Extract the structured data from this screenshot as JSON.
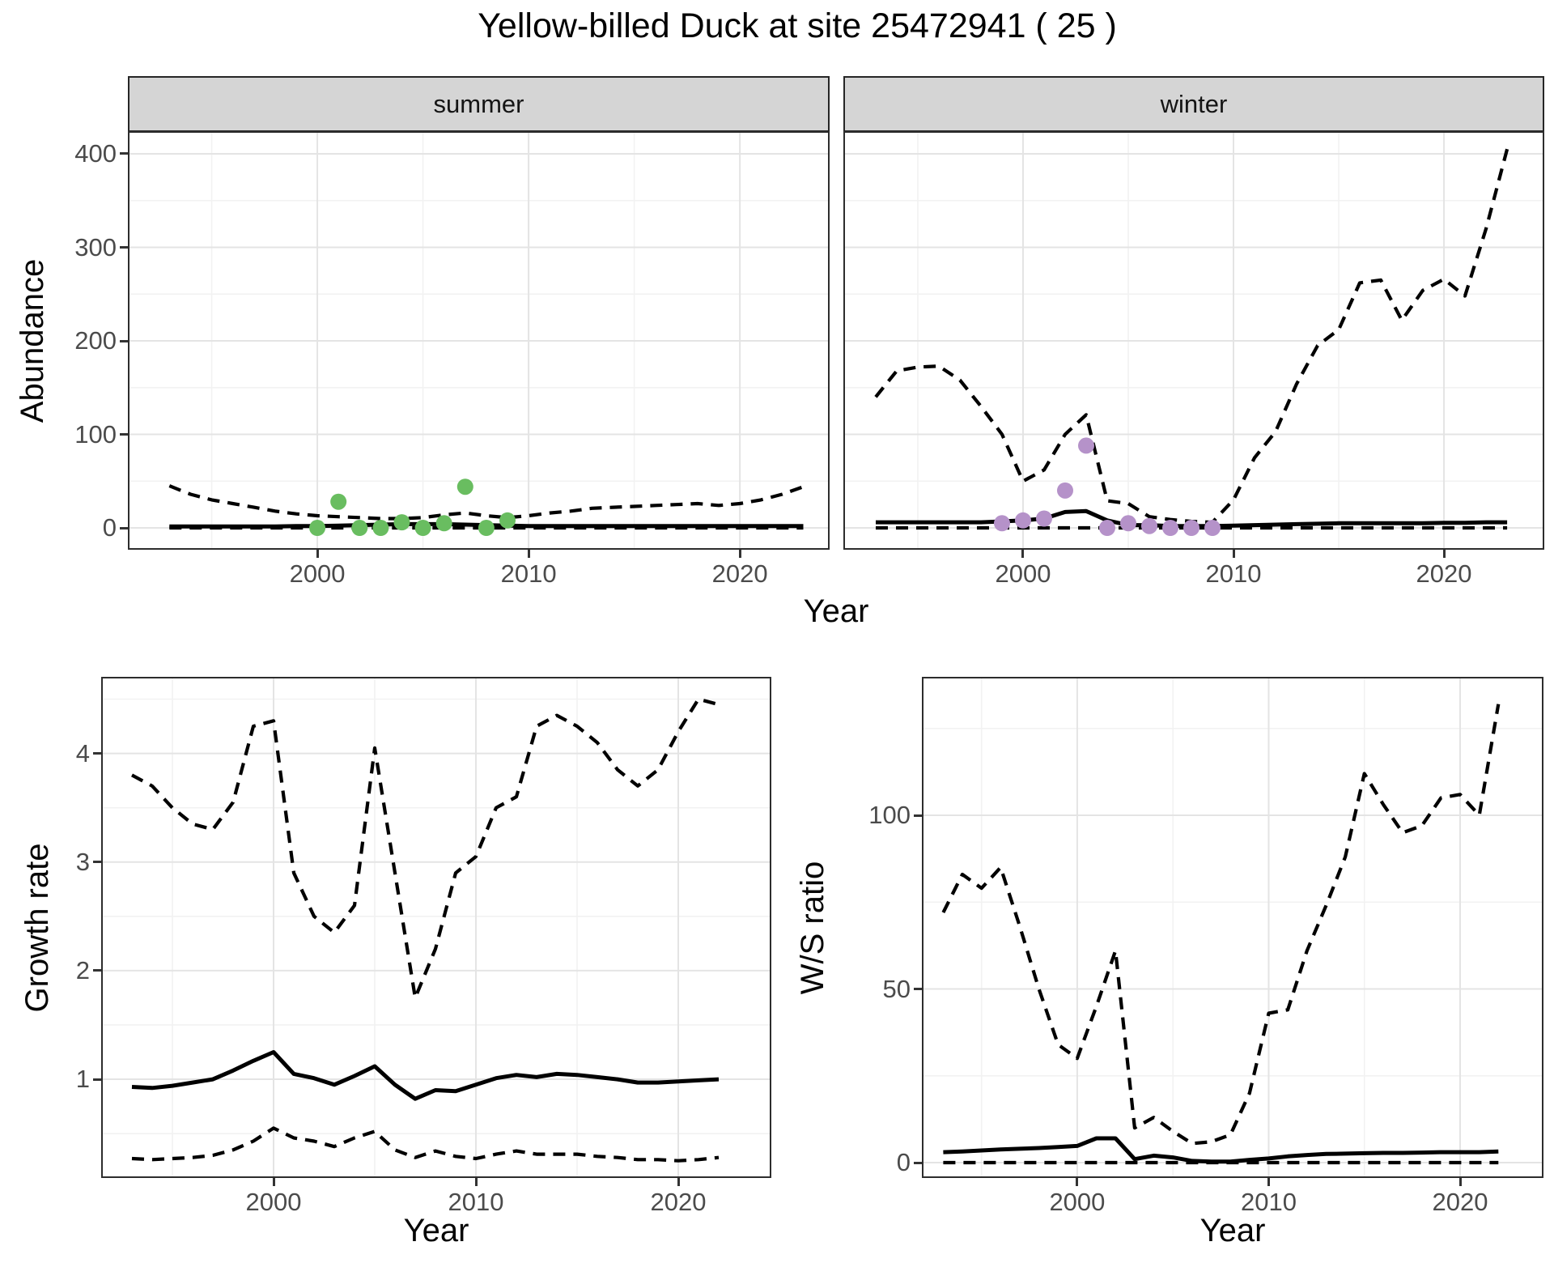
{
  "title": "Yellow-billed Duck at site 25472941 ( 25 )",
  "facets": {
    "summer": "summer",
    "winter": "winter"
  },
  "axes": {
    "abundance_y": "Abundance",
    "growth_y": "Growth rate",
    "ws_y": "W/S ratio",
    "top_x": "Year",
    "growth_x": "Year",
    "ws_x": "Year"
  },
  "colors": {
    "summer_points": "#69bd60",
    "winter_points": "#b592c9",
    "line": "#000000",
    "strip_bg": "#d5d5d5",
    "grid_major": "#e4e4e4",
    "grid_minor": "#f2f2f2",
    "tick_text": "#4b4b4b"
  },
  "chart_data": [
    {
      "id": "summer",
      "type": "line",
      "facet_label": "summer",
      "xlabel": "Year",
      "ylabel": "Abundance",
      "xlim": [
        1991.11,
        2024.17
      ],
      "ylim": [
        -21.6,
        422.5
      ],
      "xticks": [
        2000,
        2010,
        2020
      ],
      "xminor": [
        1995,
        2005,
        2015
      ],
      "yticks": [
        0,
        100,
        200,
        300,
        400
      ],
      "yminor": [
        50,
        150,
        250,
        350
      ],
      "show_y_labels": true,
      "series": [
        {
          "name": "upper_ci",
          "style": "dashed",
          "years": [
            1993,
            1994,
            1995,
            1996,
            1997,
            1998,
            1999,
            2000,
            2001,
            2002,
            2003,
            2004,
            2005,
            2006,
            2007,
            2008,
            2009,
            2010,
            2011,
            2012,
            2013,
            2014,
            2015,
            2016,
            2017,
            2018,
            2019,
            2020,
            2021,
            2022,
            2023
          ],
          "values": [
            45,
            36,
            30,
            26,
            22,
            18,
            15,
            13,
            12,
            11,
            10,
            10,
            11,
            14,
            16,
            13,
            11,
            13,
            16,
            18,
            21,
            22,
            23,
            24,
            25,
            26,
            24,
            26,
            30,
            36,
            44
          ]
        },
        {
          "name": "median",
          "style": "solid",
          "years": [
            1993,
            1994,
            1995,
            1996,
            1997,
            1998,
            1999,
            2000,
            2001,
            2002,
            2003,
            2004,
            2005,
            2006,
            2007,
            2008,
            2009,
            2010,
            2011,
            2012,
            2013,
            2014,
            2015,
            2016,
            2017,
            2018,
            2019,
            2020,
            2021,
            2022,
            2023
          ],
          "values": [
            1.5,
            1.5,
            1.5,
            1.5,
            1.5,
            1.5,
            2,
            2,
            2.5,
            3,
            3.5,
            4,
            4,
            4,
            3.5,
            3,
            2.5,
            2,
            2,
            2,
            2,
            2,
            2,
            2,
            2,
            2,
            2,
            2,
            2,
            2,
            2
          ]
        },
        {
          "name": "lower_ci",
          "style": "dashed",
          "years": [
            1993,
            1994,
            1995,
            1996,
            1997,
            1998,
            1999,
            2000,
            2001,
            2002,
            2003,
            2004,
            2005,
            2006,
            2007,
            2008,
            2009,
            2010,
            2011,
            2012,
            2013,
            2014,
            2015,
            2016,
            2017,
            2018,
            2019,
            2020,
            2021,
            2022,
            2023
          ],
          "values": [
            0,
            0,
            0,
            0,
            0,
            0,
            0,
            0,
            0,
            0,
            0,
            0,
            0,
            0,
            0,
            0,
            0,
            0,
            0,
            0,
            0,
            0,
            0,
            0,
            0,
            0,
            0,
            0,
            0,
            0,
            0
          ]
        }
      ],
      "points": {
        "name": "summer_observations",
        "color_key": "summer_points",
        "years": [
          2000,
          2001,
          2002,
          2003,
          2004,
          2005,
          2006,
          2007,
          2008,
          2009
        ],
        "values": [
          0,
          28,
          0,
          0,
          6,
          0,
          5,
          44,
          0,
          8
        ]
      }
    },
    {
      "id": "winter",
      "type": "line",
      "facet_label": "winter",
      "xlabel": "Year",
      "ylabel": "Abundance",
      "xlim": [
        1991.54,
        2024.69
      ],
      "ylim": [
        -21.6,
        422.5
      ],
      "xticks": [
        2000,
        2010,
        2020
      ],
      "xminor": [
        1995,
        2005,
        2015
      ],
      "yticks": [
        0,
        100,
        200,
        300,
        400
      ],
      "yminor": [
        50,
        150,
        250,
        350
      ],
      "show_y_labels": false,
      "series": [
        {
          "name": "upper_ci",
          "style": "dashed",
          "years": [
            1993,
            1994,
            1995,
            1996,
            1997,
            1998,
            1999,
            2000,
            2001,
            2002,
            2003,
            2004,
            2005,
            2006,
            2007,
            2008,
            2009,
            2010,
            2011,
            2012,
            2013,
            2014,
            2015,
            2016,
            2017,
            2018,
            2019,
            2020,
            2021,
            2022,
            2023
          ],
          "values": [
            140,
            168,
            172,
            173,
            158,
            130,
            100,
            50,
            62,
            100,
            121,
            29,
            26,
            12,
            9,
            7,
            6,
            30,
            75,
            103,
            154,
            195,
            212,
            262,
            265,
            222,
            254,
            266,
            248,
            320,
            405
          ]
        },
        {
          "name": "median",
          "style": "solid",
          "years": [
            1993,
            1994,
            1995,
            1996,
            1997,
            1998,
            1999,
            2000,
            2001,
            2002,
            2003,
            2004,
            2005,
            2006,
            2007,
            2008,
            2009,
            2010,
            2011,
            2012,
            2013,
            2014,
            2015,
            2016,
            2017,
            2018,
            2019,
            2020,
            2021,
            2022,
            2023
          ],
          "values": [
            6,
            6,
            6,
            6,
            6,
            6,
            7,
            8,
            10,
            17,
            18,
            8,
            3,
            3,
            2,
            2,
            2,
            2.5,
            3,
            3.5,
            4,
            4.5,
            5,
            5,
            5,
            5,
            5,
            5.5,
            5.5,
            6,
            6
          ]
        },
        {
          "name": "lower_ci",
          "style": "dashed",
          "years": [
            1993,
            1994,
            1995,
            1996,
            1997,
            1998,
            1999,
            2000,
            2001,
            2002,
            2003,
            2004,
            2005,
            2006,
            2007,
            2008,
            2009,
            2010,
            2011,
            2012,
            2013,
            2014,
            2015,
            2016,
            2017,
            2018,
            2019,
            2020,
            2021,
            2022,
            2023
          ],
          "values": [
            0,
            0,
            0,
            0,
            0,
            0,
            0,
            0,
            0,
            0,
            0,
            0,
            0,
            0,
            0,
            0,
            0,
            0,
            0,
            0,
            0,
            0,
            0,
            0,
            0,
            0,
            0,
            0,
            0,
            0,
            0
          ]
        }
      ],
      "points": {
        "name": "winter_observations",
        "color_key": "winter_points",
        "years": [
          1999,
          2000,
          2001,
          2002,
          2003,
          2004,
          2005,
          2006,
          2007,
          2008,
          2009
        ],
        "values": [
          5,
          8,
          10,
          40,
          88,
          0,
          5,
          2,
          0,
          0,
          0
        ]
      }
    },
    {
      "id": "growth",
      "type": "line",
      "facet_label": "",
      "xlabel": "Year",
      "ylabel": "Growth rate",
      "xlim": [
        1991.56,
        2024.52
      ],
      "ylim": [
        0.106,
        4.69
      ],
      "xticks": [
        2000,
        2010,
        2020
      ],
      "xminor": [
        1995,
        2005,
        2015
      ],
      "yticks": [
        1,
        2,
        3,
        4
      ],
      "yminor": [
        0.5,
        1.5,
        2.5,
        3.5,
        4.5
      ],
      "show_y_labels": true,
      "series": [
        {
          "name": "upper_ci",
          "style": "dashed",
          "years": [
            1993,
            1994,
            1995,
            1996,
            1997,
            1998,
            1999,
            2000,
            2001,
            2002,
            2003,
            2004,
            2005,
            2006,
            2007,
            2008,
            2009,
            2010,
            2011,
            2012,
            2013,
            2014,
            2015,
            2016,
            2017,
            2018,
            2019,
            2020,
            2021,
            2022
          ],
          "values": [
            3.8,
            3.7,
            3.5,
            3.35,
            3.3,
            3.55,
            4.25,
            4.3,
            2.9,
            2.5,
            2.35,
            2.6,
            4.05,
            2.9,
            1.75,
            2.2,
            2.9,
            3.05,
            3.5,
            3.6,
            4.25,
            4.35,
            4.25,
            4.1,
            3.85,
            3.7,
            3.85,
            4.2,
            4.5,
            4.45
          ]
        },
        {
          "name": "median",
          "style": "solid",
          "years": [
            1993,
            1994,
            1995,
            1996,
            1997,
            1998,
            1999,
            2000,
            2001,
            2002,
            2003,
            2004,
            2005,
            2006,
            2007,
            2008,
            2009,
            2010,
            2011,
            2012,
            2013,
            2014,
            2015,
            2016,
            2017,
            2018,
            2019,
            2020,
            2021,
            2022
          ],
          "values": [
            0.93,
            0.92,
            0.94,
            0.97,
            1.0,
            1.08,
            1.17,
            1.25,
            1.05,
            1.01,
            0.95,
            1.03,
            1.12,
            0.95,
            0.82,
            0.9,
            0.89,
            0.95,
            1.01,
            1.04,
            1.02,
            1.05,
            1.04,
            1.02,
            1.0,
            0.97,
            0.97,
            0.98,
            0.99,
            1.0
          ]
        },
        {
          "name": "lower_ci",
          "style": "dashed",
          "years": [
            1993,
            1994,
            1995,
            1996,
            1997,
            1998,
            1999,
            2000,
            2001,
            2002,
            2003,
            2004,
            2005,
            2006,
            2007,
            2008,
            2009,
            2010,
            2011,
            2012,
            2013,
            2014,
            2015,
            2016,
            2017,
            2018,
            2019,
            2020,
            2021,
            2022
          ],
          "values": [
            0.27,
            0.26,
            0.27,
            0.28,
            0.3,
            0.35,
            0.43,
            0.55,
            0.46,
            0.43,
            0.38,
            0.46,
            0.52,
            0.35,
            0.28,
            0.34,
            0.29,
            0.27,
            0.31,
            0.34,
            0.31,
            0.31,
            0.31,
            0.29,
            0.28,
            0.26,
            0.26,
            0.25,
            0.26,
            0.28
          ]
        }
      ],
      "points": null
    },
    {
      "id": "ws",
      "type": "line",
      "facet_label": "",
      "xlabel": "Year",
      "ylabel": "W/S ratio",
      "xlim": [
        1991.97,
        2024.27
      ],
      "ylim": [
        -3.96,
        139.4
      ],
      "xticks": [
        2000,
        2010,
        2020
      ],
      "xminor": [
        1995,
        2005,
        2015
      ],
      "yticks": [
        0,
        50,
        100
      ],
      "yminor": [
        25,
        75,
        125
      ],
      "show_y_labels": true,
      "series": [
        {
          "name": "upper_ci",
          "style": "dashed",
          "years": [
            1993,
            1994,
            1995,
            1996,
            1997,
            1998,
            1999,
            2000,
            2001,
            2002,
            2003,
            2004,
            2005,
            2006,
            2007,
            2008,
            2009,
            2010,
            2011,
            2012,
            2013,
            2014,
            2015,
            2016,
            2017,
            2018,
            2019,
            2020,
            2021,
            2022
          ],
          "values": [
            72,
            83,
            79,
            85,
            68,
            50,
            34,
            30,
            45,
            61,
            10,
            13,
            9,
            5.5,
            6,
            8,
            20,
            43,
            44,
            61,
            74,
            88,
            112,
            103,
            95,
            97,
            105,
            106,
            100,
            132
          ]
        },
        {
          "name": "median",
          "style": "solid",
          "years": [
            1993,
            1994,
            1995,
            1996,
            1997,
            1998,
            1999,
            2000,
            2001,
            2002,
            2003,
            2004,
            2005,
            2006,
            2007,
            2008,
            2009,
            2010,
            2011,
            2012,
            2013,
            2014,
            2015,
            2016,
            2017,
            2018,
            2019,
            2020,
            2021,
            2022
          ],
          "values": [
            3,
            3.2,
            3.5,
            3.8,
            4,
            4.2,
            4.5,
            4.8,
            7,
            7,
            1,
            2,
            1.5,
            0.5,
            0.3,
            0.3,
            0.8,
            1.2,
            1.8,
            2.2,
            2.5,
            2.6,
            2.7,
            2.8,
            2.8,
            2.9,
            3,
            3,
            3,
            3.2
          ]
        },
        {
          "name": "lower_ci",
          "style": "dashed",
          "years": [
            1993,
            1994,
            1995,
            1996,
            1997,
            1998,
            1999,
            2000,
            2001,
            2002,
            2003,
            2004,
            2005,
            2006,
            2007,
            2008,
            2009,
            2010,
            2011,
            2012,
            2013,
            2014,
            2015,
            2016,
            2017,
            2018,
            2019,
            2020,
            2021,
            2022
          ],
          "values": [
            0,
            0,
            0,
            0,
            0,
            0,
            0,
            0,
            0,
            0,
            0,
            0,
            0,
            0,
            0,
            0,
            0,
            0,
            0,
            0,
            0,
            0,
            0,
            0,
            0,
            0,
            0,
            0,
            0,
            0
          ]
        }
      ],
      "points": null
    }
  ]
}
